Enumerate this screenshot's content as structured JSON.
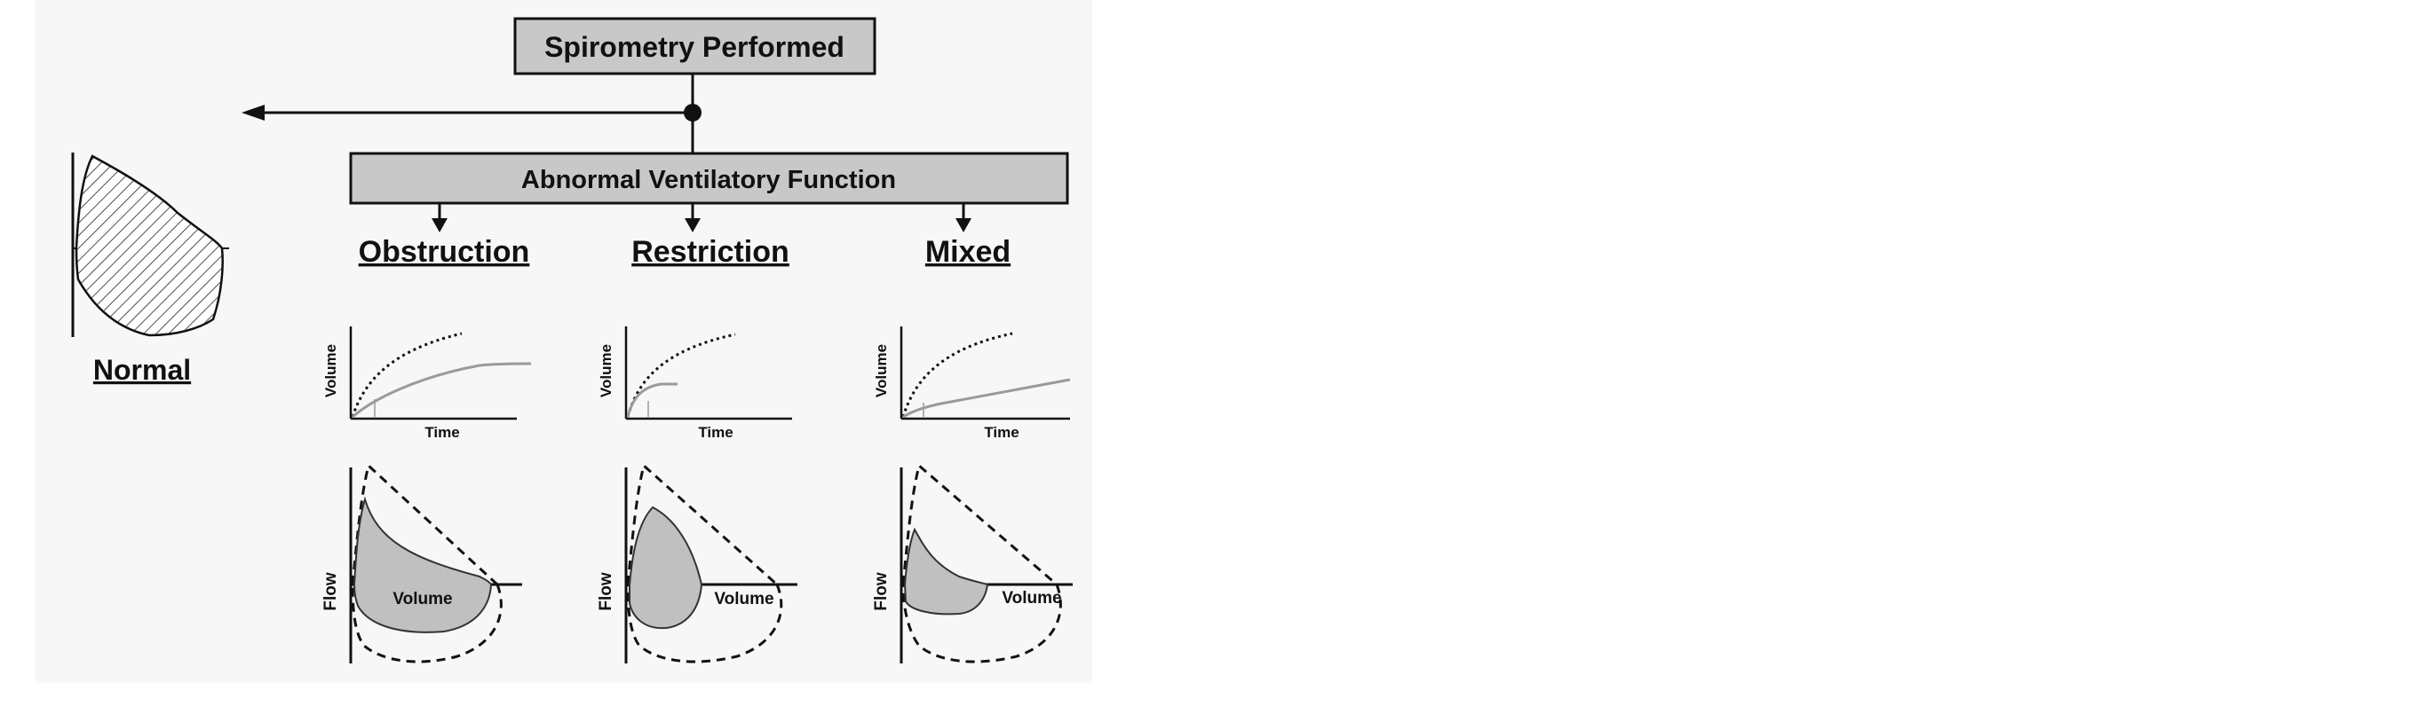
{
  "top_box": {
    "label": "Spirometry Performed"
  },
  "abnormal_box": {
    "label": "Abnormal Ventilatory Function"
  },
  "normal": {
    "label": "Normal"
  },
  "categories": [
    {
      "id": "obstruction",
      "label": "Obstruction",
      "volume_axis": "Volume",
      "time_axis": "Time",
      "flow_axis": "Flow",
      "flow_volume_axis": "Volume"
    },
    {
      "id": "restriction",
      "label": "Restriction",
      "volume_axis": "Volume",
      "time_axis": "Time",
      "flow_axis": "Flow",
      "flow_volume_axis": "Volume"
    },
    {
      "id": "mixed",
      "label": "Mixed",
      "volume_axis": "Volume",
      "time_axis": "Time",
      "flow_axis": "Flow",
      "flow_volume_axis": "Volume"
    }
  ],
  "colors": {
    "box_fill": "#c8c8c8",
    "loop_fill": "#c0c0c0",
    "line": "#111111",
    "curve_gray": "#9a9a9a"
  }
}
